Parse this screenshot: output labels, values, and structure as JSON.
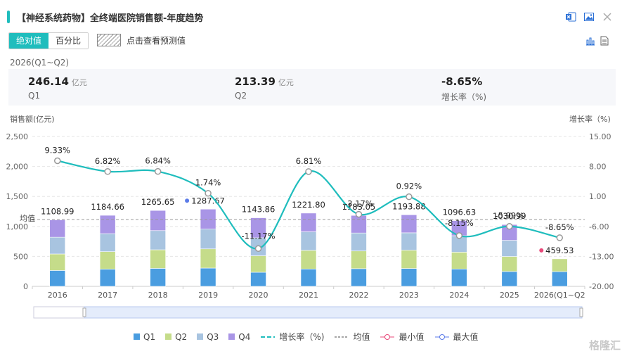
{
  "header": {
    "title": "【神经系统药物】全终端医院销售额-年度趋势"
  },
  "toolbar": {
    "toggle_absolute": "绝对值",
    "toggle_percent": "百分比",
    "predict_label": "点击查看预测值"
  },
  "stats": {
    "period": "2026(Q1~Q2)",
    "items": [
      {
        "value": "246.14",
        "unit": "亿元",
        "label": "Q1"
      },
      {
        "value": "213.39",
        "unit": "亿元",
        "label": "Q2"
      },
      {
        "value": "-8.65%",
        "unit": "",
        "label": "增长率（%)"
      }
    ]
  },
  "legend": {
    "q1": "Q1",
    "q2": "Q2",
    "q3": "Q3",
    "q4": "Q4",
    "growth": "增长率（%)",
    "avg": "均值",
    "min": "最小值",
    "max": "最大值"
  },
  "watermark": "格隆汇",
  "colors": {
    "accent": "#1fbdbd",
    "q1": "#4a9de0",
    "q2": "#c5dc8a",
    "q3": "#a8c4e0",
    "q4": "#a995e6",
    "growth_line": "#1fbdbd",
    "min_marker": "#e8497a",
    "max_marker": "#5b7be8"
  },
  "chart_data": {
    "type": "bar",
    "stacked": true,
    "categories": [
      "2016",
      "2017",
      "2018",
      "2019",
      "2020",
      "2021",
      "2022",
      "2023",
      "2024",
      "2025",
      "2026(Q1~Q2"
    ],
    "series": [
      {
        "name": "Q1",
        "values": [
          265,
          287,
          300,
          305,
          235,
          290,
          295,
          298,
          290,
          248,
          246
        ]
      },
      {
        "name": "Q2",
        "values": [
          275,
          292,
          310,
          320,
          275,
          310,
          295,
          305,
          280,
          250,
          213
        ]
      },
      {
        "name": "Q3",
        "values": [
          280,
          300,
          320,
          330,
          300,
          310,
          300,
          290,
          275,
          270,
          0
        ]
      },
      {
        "name": "Q4",
        "values": [
          289,
          306,
          336,
          333,
          334,
          312,
          293,
          301,
          252,
          263,
          0
        ]
      }
    ],
    "totals": [
      "1108.99",
      "1184.66",
      "1265.65",
      "1287.67",
      "1143.86",
      "1221.80",
      "1183.05",
      "1193.88",
      "1096.63",
      "1030.99",
      "459.53"
    ],
    "growth": {
      "name": "增长率（%)",
      "values": [
        9.33,
        6.82,
        6.84,
        1.74,
        -11.17,
        6.81,
        -3.17,
        0.92,
        -8.15,
        -5.99,
        -8.65
      ],
      "labels": [
        "9.33%",
        "6.82%",
        "6.84%",
        "1.74%",
        "-11.17%",
        "6.81%",
        "-3.17%",
        "0.92%",
        "-8.15%",
        "-5.99%",
        "-8.65%"
      ]
    },
    "ylabel": "销售额(亿元)",
    "y2label": "增长率（%)",
    "ylim": [
      0,
      2500
    ],
    "yticks": [
      "0",
      "500",
      "1,000",
      "1,500",
      "2,000",
      "2,500"
    ],
    "y2lim": [
      -20,
      15
    ],
    "y2ticks": [
      "-20.00",
      "-13.00",
      "-6.00",
      "1.00",
      "8.00",
      "15.00"
    ],
    "avg_label": "均值",
    "avg_value": 1115,
    "max_index": 3,
    "min_index": 10,
    "grid": true,
    "legend_position": "bottom"
  }
}
